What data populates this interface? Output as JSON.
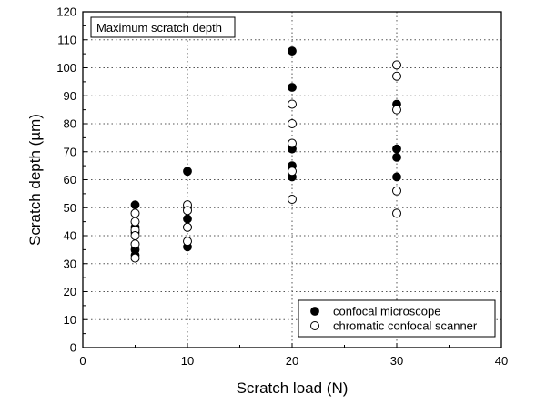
{
  "chart_data": {
    "type": "scatter",
    "annotation": "Maximum scratch depth",
    "xlabel": "Scratch load (N)",
    "ylabel": "Scratch depth (µm)",
    "xlim": [
      0,
      40
    ],
    "ylim": [
      0,
      120
    ],
    "xticks": [
      0,
      10,
      20,
      30,
      40
    ],
    "yticks": [
      0,
      10,
      20,
      30,
      40,
      50,
      60,
      70,
      80,
      90,
      100,
      110,
      120
    ],
    "grid": true,
    "legend_position": "bottom-right",
    "series": [
      {
        "name": "confocal microscope",
        "marker": "filled-circle",
        "points": [
          [
            5,
            51
          ],
          [
            5,
            43
          ],
          [
            5,
            41
          ],
          [
            5,
            35
          ],
          [
            5,
            33
          ],
          [
            10,
            63
          ],
          [
            10,
            50
          ],
          [
            10,
            46
          ],
          [
            10,
            43
          ],
          [
            10,
            36
          ],
          [
            20,
            106
          ],
          [
            20,
            93
          ],
          [
            20,
            71
          ],
          [
            20,
            65
          ],
          [
            20,
            61
          ],
          [
            30,
            87
          ],
          [
            30,
            71
          ],
          [
            30,
            68
          ],
          [
            30,
            61
          ]
        ]
      },
      {
        "name": "chromatic confocal scanner",
        "marker": "open-circle",
        "points": [
          [
            5,
            48
          ],
          [
            5,
            45
          ],
          [
            5,
            42
          ],
          [
            5,
            40
          ],
          [
            5,
            37
          ],
          [
            5,
            32
          ],
          [
            10,
            51
          ],
          [
            10,
            49
          ],
          [
            10,
            43
          ],
          [
            10,
            38
          ],
          [
            20,
            87
          ],
          [
            20,
            80
          ],
          [
            20,
            73
          ],
          [
            20,
            63
          ],
          [
            20,
            53
          ],
          [
            30,
            101
          ],
          [
            30,
            97
          ],
          [
            30,
            85
          ],
          [
            30,
            56
          ],
          [
            30,
            48
          ]
        ]
      }
    ]
  },
  "colors": {
    "filled": "#000000",
    "open_fill": "#ffffff",
    "stroke": "#000000",
    "grid": "#555555"
  }
}
